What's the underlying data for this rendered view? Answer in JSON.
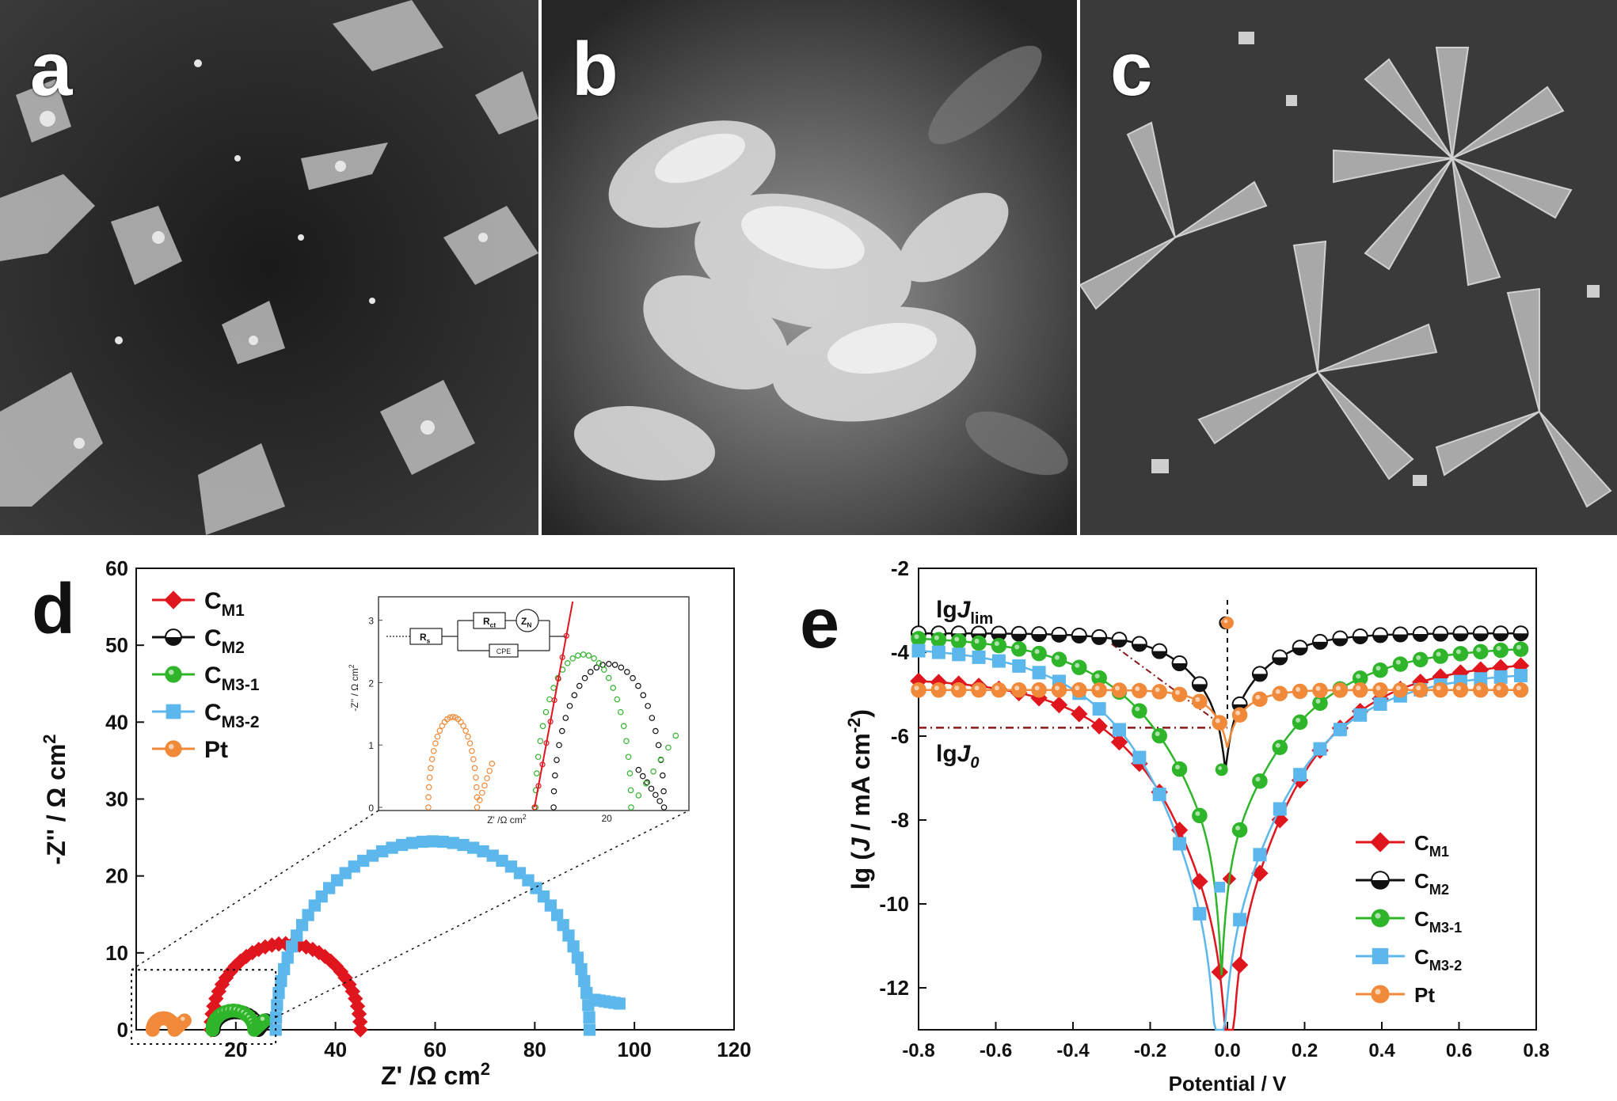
{
  "panels": {
    "a": {
      "label": "a"
    },
    "b": {
      "label": "b"
    },
    "c": {
      "label": "c"
    },
    "d": {
      "label": "d"
    },
    "e": {
      "label": "e"
    }
  },
  "colors": {
    "CM1": "#e0161e",
    "CM2": "#111111",
    "CM3_1": "#2fb52a",
    "CM3_2": "#5cb8ec",
    "Pt": "#f08a3a"
  },
  "chart_data": [
    {
      "type": "scatter",
      "panel": "d",
      "xlabel_main": "Z' /Ω cm",
      "xlabel_sup": "2",
      "ylabel_main": "-Z'' / Ω cm",
      "ylabel_sup": "2",
      "xlim": [
        0,
        120
      ],
      "ylim": [
        0,
        60
      ],
      "xticks": [
        "20",
        "40",
        "60",
        "80",
        "100",
        "120"
      ],
      "yticks": [
        "0",
        "10",
        "20",
        "30",
        "40",
        "50",
        "60"
      ],
      "legend_placement": "top-left",
      "series": [
        {
          "key": "CM1",
          "name_main": "C",
          "name_sub": "M1",
          "marker": "diamond",
          "center": 30,
          "radius": 15,
          "height": 11.2,
          "tail": 0
        },
        {
          "key": "CM2",
          "name_main": "C",
          "name_sub": "M2",
          "marker": "circle-half",
          "center": 20,
          "radius": 4.5,
          "height": 2.3,
          "tail": 1.5
        },
        {
          "key": "CM3_1",
          "name_main": "C",
          "name_sub": "M3-1",
          "marker": "circle",
          "center": 19.5,
          "radius": 4.2,
          "height": 2.5,
          "tail": 2
        },
        {
          "key": "CM3_2",
          "name_main": "C",
          "name_sub": "M3-2",
          "marker": "square",
          "center": 59.5,
          "radius": 31.5,
          "height": 24.5,
          "tail": 6
        },
        {
          "key": "Pt",
          "name_main": "Pt",
          "name_sub": "",
          "marker": "circle",
          "center": 5.5,
          "radius": 2.2,
          "height": 1.5,
          "tail": 2
        }
      ],
      "inset": {
        "xlabel": "Z' /Ω cm",
        "xlabel_sup": "2",
        "ylabel": "-Z'' / Ω cm",
        "ylabel_sup": "2",
        "xtick": "20",
        "yticks": [
          "0",
          "1",
          "2",
          "3"
        ],
        "circuit": {
          "Rs": "R",
          "Rs_sub": "s",
          "Rct": "R",
          "Rct_sub": "ct",
          "Zw": "Z",
          "Zw_sub": "N",
          "cpe": "CPE"
        }
      }
    },
    {
      "type": "line",
      "panel": "e",
      "xlabel": "Potential / V",
      "ylabel_pre": "lg (",
      "ylabel_italic": "J",
      "ylabel_post": " / mA cm",
      "ylabel_sup": "-2",
      "ylabel_close": ")",
      "xlim": [
        -0.8,
        0.8
      ],
      "ylim": [
        -13,
        -2
      ],
      "xticks": [
        "-0.8",
        "-0.6",
        "-0.4",
        "-0.2",
        "0.0",
        "0.2",
        "0.4",
        "0.6",
        "0.8"
      ],
      "yticks": [
        "-2",
        "-4",
        "-6",
        "-8",
        "-10",
        "-12"
      ],
      "legend_placement": "bottom-right",
      "annotations": {
        "lim_pre": "lg",
        "lim_italic": "J",
        "lim_sub": "lim",
        "zero_pre": "lg",
        "zero_italic": "J",
        "zero_sub": "0",
        "lgJ0_value": -5.8
      },
      "series": [
        {
          "key": "CM1",
          "name_main": "C",
          "name_sub": "M1",
          "marker": "diamond",
          "plateau_left": -4.6,
          "plateau_right": -4.2,
          "min": -12.0,
          "min_x": 0.005
        },
        {
          "key": "CM2",
          "name_main": "C",
          "name_sub": "M2",
          "marker": "circle-half",
          "plateau_left": -3.55,
          "plateau_right": -3.55,
          "min": -5.9,
          "min_x": -0.005
        },
        {
          "key": "CM3_1",
          "name_main": "C",
          "name_sub": "M3-1",
          "marker": "circle",
          "plateau_left": -3.6,
          "plateau_right": -3.85,
          "min": -9.4,
          "min_x": -0.015
        },
        {
          "key": "CM3_2",
          "name_main": "C",
          "name_sub": "M3-2",
          "marker": "square",
          "plateau_left": -3.85,
          "plateau_right": -4.45,
          "min": -12.2,
          "min_x": -0.02
        },
        {
          "key": "Pt",
          "name_main": "Pt",
          "name_sub": "",
          "marker": "circle",
          "plateau_left": -4.9,
          "plateau_right": -4.9,
          "min": -5.9,
          "min_x": 0.0
        }
      ]
    }
  ]
}
